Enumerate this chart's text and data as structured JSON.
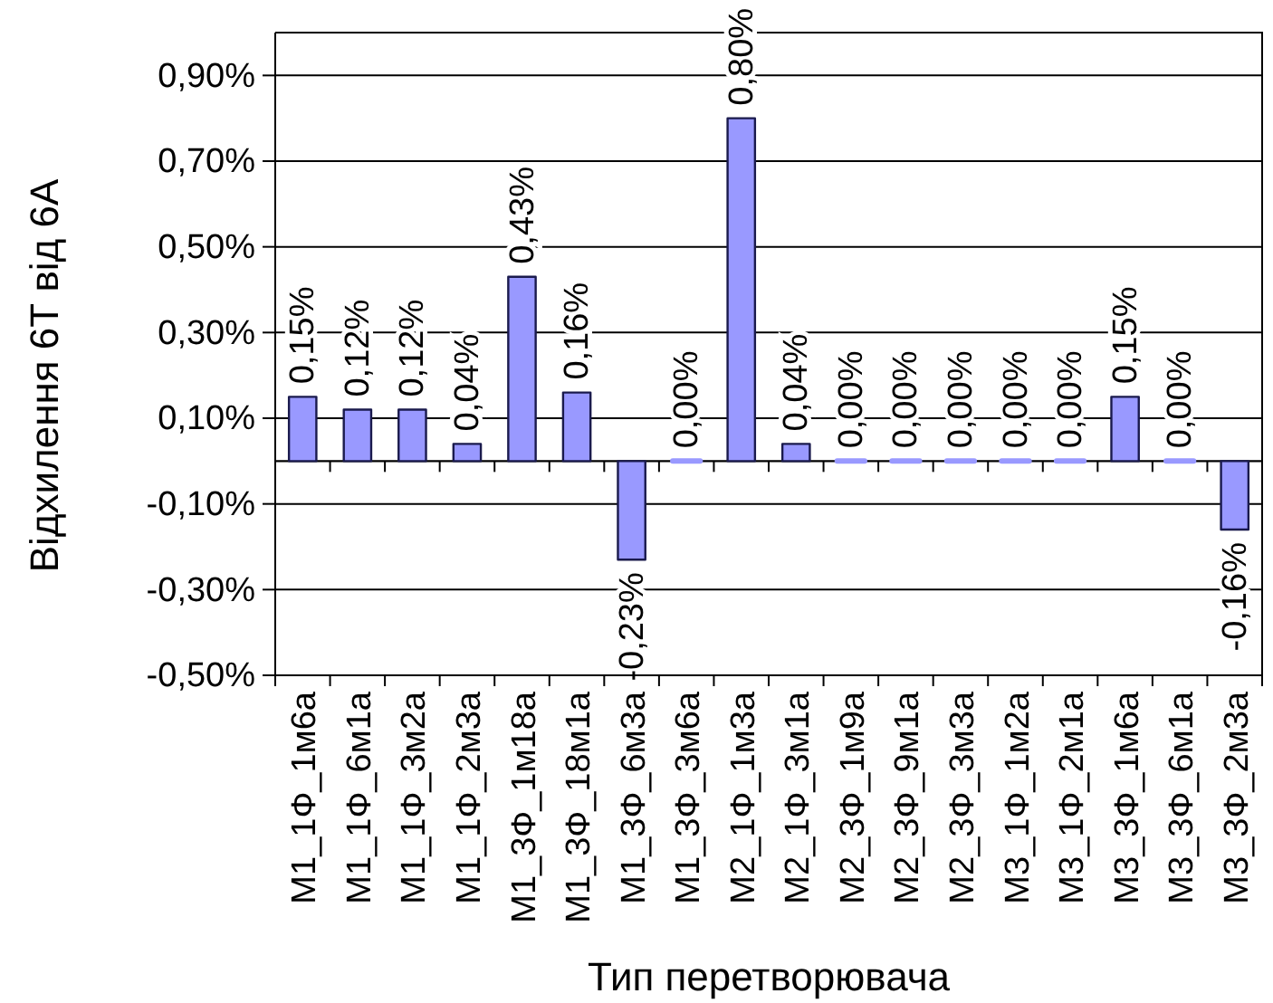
{
  "chart_data": {
    "type": "bar",
    "xlabel": "Тип перетворювача",
    "ylabel": "Відхилення 6Т від 6А",
    "categories": [
      "М1_1Ф_1м6а",
      "М1_1Ф_6м1а",
      "М1_1Ф_3м2а",
      "М1_1Ф_2м3а",
      "М1_3Ф_1м18а",
      "М1_3Ф_18м1а",
      "М1_3Ф_6м3а",
      "М1_3Ф_3м6а",
      "М2_1Ф_1м3а",
      "М2_1Ф_3м1а",
      "М2_3Ф_1м9а",
      "М2_3Ф_9м1а",
      "М2_3Ф_3м3а",
      "М3_1Ф_1м2а",
      "М3_1Ф_2м1а",
      "М3_3Ф_1м6а",
      "М3_3Ф_6м1а",
      "М3_3Ф_2м3а"
    ],
    "values": [
      0.15,
      0.12,
      0.12,
      0.04,
      0.43,
      0.16,
      -0.23,
      0,
      0.8,
      0.04,
      0,
      0,
      0,
      0,
      0,
      0.15,
      0,
      -0.16
    ],
    "value_labels": [
      "0,15%",
      "0,12%",
      "0,12%",
      "0,04%",
      "0,43%",
      "0,16%",
      "-0,23%",
      "0,00%",
      "0,80%",
      "0,04%",
      "0,00%",
      "0,00%",
      "0,00%",
      "0,00%",
      "0,00%",
      "0,15%",
      "0,00%",
      "-0,16%"
    ],
    "color": "#9999ff",
    "ylim": [
      -0.5,
      1.0
    ],
    "yticks": [
      {
        "value": -0.5,
        "label": "-0,50%"
      },
      {
        "value": -0.3,
        "label": "-0,30%"
      },
      {
        "value": -0.1,
        "label": "-0,10%"
      },
      {
        "value": 0.1,
        "label": "0,10%"
      },
      {
        "value": 0.3,
        "label": "0,30%"
      },
      {
        "value": 0.5,
        "label": "0,50%"
      },
      {
        "value": 0.7,
        "label": "0,70%"
      },
      {
        "value": 0.9,
        "label": "0,90%"
      }
    ],
    "grid": "y",
    "ref_lines": [
      {
        "axis": "y",
        "value": 0
      }
    ]
  }
}
